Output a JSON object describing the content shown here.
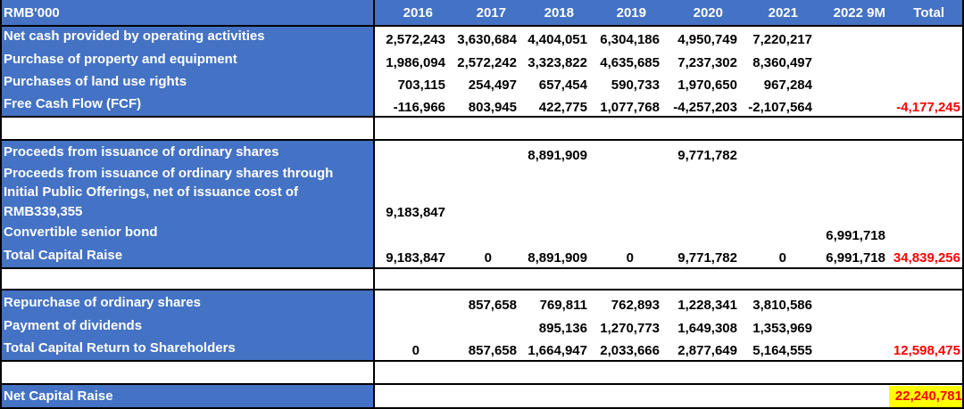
{
  "header": {
    "unit": "RMB'000",
    "years": [
      "2016",
      "2017",
      "2018",
      "2019",
      "2020",
      "2021",
      "2022 9M"
    ],
    "total": "Total"
  },
  "fcf": {
    "rows": [
      {
        "label": "Net cash provided by operating activities",
        "values": [
          "2,572,243",
          "3,630,684",
          "4,404,051",
          "6,304,186",
          "4,950,749",
          "7,220,217",
          ""
        ]
      },
      {
        "label": "Purchase of property and equipment",
        "values": [
          "1,986,094",
          "2,572,242",
          "3,323,822",
          "4,635,685",
          "7,237,302",
          "8,360,497",
          ""
        ]
      },
      {
        "label": "Purchases of land use rights",
        "values": [
          "703,115",
          "254,497",
          "657,454",
          "590,733",
          "1,970,650",
          "967,284",
          ""
        ]
      },
      {
        "label": "Free Cash Flow (FCF)",
        "values": [
          "-116,966",
          "803,945",
          "422,775",
          "1,077,768",
          "-4,257,203",
          "-2,107,564",
          ""
        ],
        "total": "-4,177,245"
      }
    ]
  },
  "capital_raise": {
    "rows": [
      {
        "label": "Proceeds from issuance of ordinary shares",
        "values": [
          "",
          "",
          "8,891,909",
          "",
          "9,771,782",
          "",
          ""
        ]
      },
      {
        "label_lines": [
          "Proceeds from issuance of ordinary shares through",
          "Initial Public Offerings, net of issuance cost of",
          "RMB339,355"
        ],
        "values": [
          "9,183,847",
          "",
          "",
          "",
          "",
          "",
          ""
        ]
      },
      {
        "label": "Convertible senior bond",
        "values": [
          "",
          "",
          "",
          "",
          "",
          "",
          "6,991,718"
        ]
      },
      {
        "label": "Total Capital Raise",
        "values": [
          "9,183,847",
          "0",
          "8,891,909",
          "0",
          "9,771,782",
          "0",
          "6,991,718"
        ],
        "total": "34,839,256"
      }
    ]
  },
  "capital_return": {
    "rows": [
      {
        "label": "Repurchase of ordinary shares",
        "values": [
          "",
          "857,658",
          "769,811",
          "762,893",
          "1,228,341",
          "3,810,586",
          ""
        ]
      },
      {
        "label": "Payment of dividends",
        "values": [
          "",
          "",
          "895,136",
          "1,270,773",
          "1,649,308",
          "1,353,969",
          ""
        ]
      },
      {
        "label": "Total Capital Return to Shareholders",
        "values": [
          "0",
          "857,658",
          "1,664,947",
          "2,033,666",
          "2,877,649",
          "5,164,555",
          ""
        ],
        "total": "12,598,475"
      }
    ]
  },
  "net": {
    "label": "Net Capital Raise",
    "total": "22,240,781",
    "highlight_color": "#ffff00"
  },
  "colors": {
    "label_bg": "#4472c4",
    "negative_total": "#ff0000"
  }
}
